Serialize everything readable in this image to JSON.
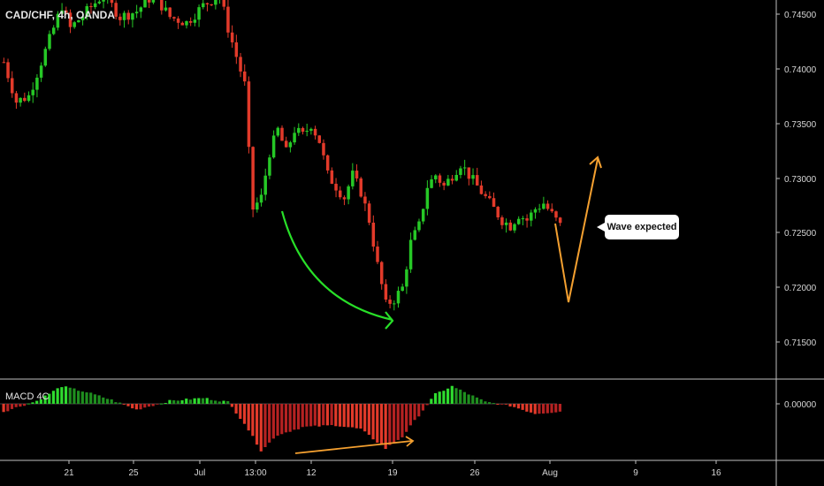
{
  "header": {
    "symbol_title": "CAD/CHF, 4h, OANDA"
  },
  "indicator": {
    "title": "MACD 4C"
  },
  "annotation": {
    "callout": "Wave expected"
  },
  "colors": {
    "background": "#000000",
    "bull": "#26c826",
    "bear": "#e23a2a",
    "green_arrow": "#28e028",
    "orange_arrow": "#f4a030",
    "grid_border": "#bfbfbf"
  },
  "chart_data": {
    "type": "candlestick",
    "price_axis": {
      "ticks": [
        "0.74500",
        "0.74000",
        "0.73500",
        "0.73000",
        "0.72500",
        "0.72000",
        "0.71500"
      ],
      "range": [
        0.713,
        0.7465
      ]
    },
    "macd_axis": {
      "ticks": [
        "0.00000"
      ]
    },
    "x_axis": {
      "tick_labels": [
        "21",
        "25",
        "Jul",
        "13:00",
        "12",
        "19",
        "26",
        "Aug",
        "9",
        "16"
      ]
    },
    "price_path": [
      [
        0,
        0.741
      ],
      [
        3,
        0.7375
      ],
      [
        6,
        0.738
      ],
      [
        10,
        0.742
      ],
      [
        14,
        0.746
      ],
      [
        16,
        0.744
      ],
      [
        20,
        0.7455
      ],
      [
        24,
        0.747
      ],
      [
        28,
        0.745
      ],
      [
        32,
        0.7455
      ],
      [
        36,
        0.747
      ],
      [
        40,
        0.745
      ],
      [
        44,
        0.7445
      ],
      [
        48,
        0.746
      ],
      [
        52,
        0.747
      ],
      [
        54,
        0.744
      ],
      [
        56,
        0.7415
      ],
      [
        58,
        0.739
      ],
      [
        59,
        0.733
      ],
      [
        60,
        0.728
      ],
      [
        62,
        0.729
      ],
      [
        64,
        0.733
      ],
      [
        66,
        0.735
      ],
      [
        68,
        0.733
      ],
      [
        70,
        0.735
      ],
      [
        72,
        0.7345
      ],
      [
        74,
        0.7355
      ],
      [
        76,
        0.734
      ],
      [
        78,
        0.731
      ],
      [
        80,
        0.73
      ],
      [
        82,
        0.729
      ],
      [
        84,
        0.731
      ],
      [
        86,
        0.7295
      ],
      [
        88,
        0.727
      ],
      [
        90,
        0.723
      ],
      [
        92,
        0.7195
      ],
      [
        94,
        0.72
      ],
      [
        96,
        0.721
      ],
      [
        98,
        0.725
      ],
      [
        100,
        0.7265
      ],
      [
        102,
        0.73
      ],
      [
        104,
        0.731
      ],
      [
        106,
        0.73
      ],
      [
        108,
        0.731
      ],
      [
        110,
        0.732
      ],
      [
        112,
        0.731
      ],
      [
        114,
        0.73
      ],
      [
        116,
        0.729
      ],
      [
        118,
        0.728
      ],
      [
        120,
        0.727
      ],
      [
        122,
        0.7265
      ],
      [
        124,
        0.7275
      ],
      [
        126,
        0.727
      ],
      [
        128,
        0.728
      ],
      [
        130,
        0.7285
      ],
      [
        132,
        0.7275
      ],
      [
        134,
        0.7265
      ]
    ],
    "macd_path": [
      [
        0,
        -8e-05
      ],
      [
        8,
        3e-05
      ],
      [
        14,
        0.00018
      ],
      [
        20,
        0.00012
      ],
      [
        26,
        4e-05
      ],
      [
        32,
        -6e-05
      ],
      [
        40,
        3e-05
      ],
      [
        48,
        6e-05
      ],
      [
        54,
        2e-05
      ],
      [
        58,
        -0.0002
      ],
      [
        62,
        -0.00048
      ],
      [
        66,
        -0.00032
      ],
      [
        72,
        -0.00024
      ],
      [
        80,
        -0.00022
      ],
      [
        86,
        -0.00026
      ],
      [
        92,
        -0.00046
      ],
      [
        96,
        -0.00034
      ],
      [
        100,
        -0.00012
      ],
      [
        104,
        0.0001
      ],
      [
        108,
        0.00018
      ],
      [
        112,
        0.0001
      ],
      [
        116,
        2e-05
      ],
      [
        122,
        -2e-05
      ],
      [
        128,
        -0.0001
      ],
      [
        134,
        -8e-05
      ]
    ]
  }
}
